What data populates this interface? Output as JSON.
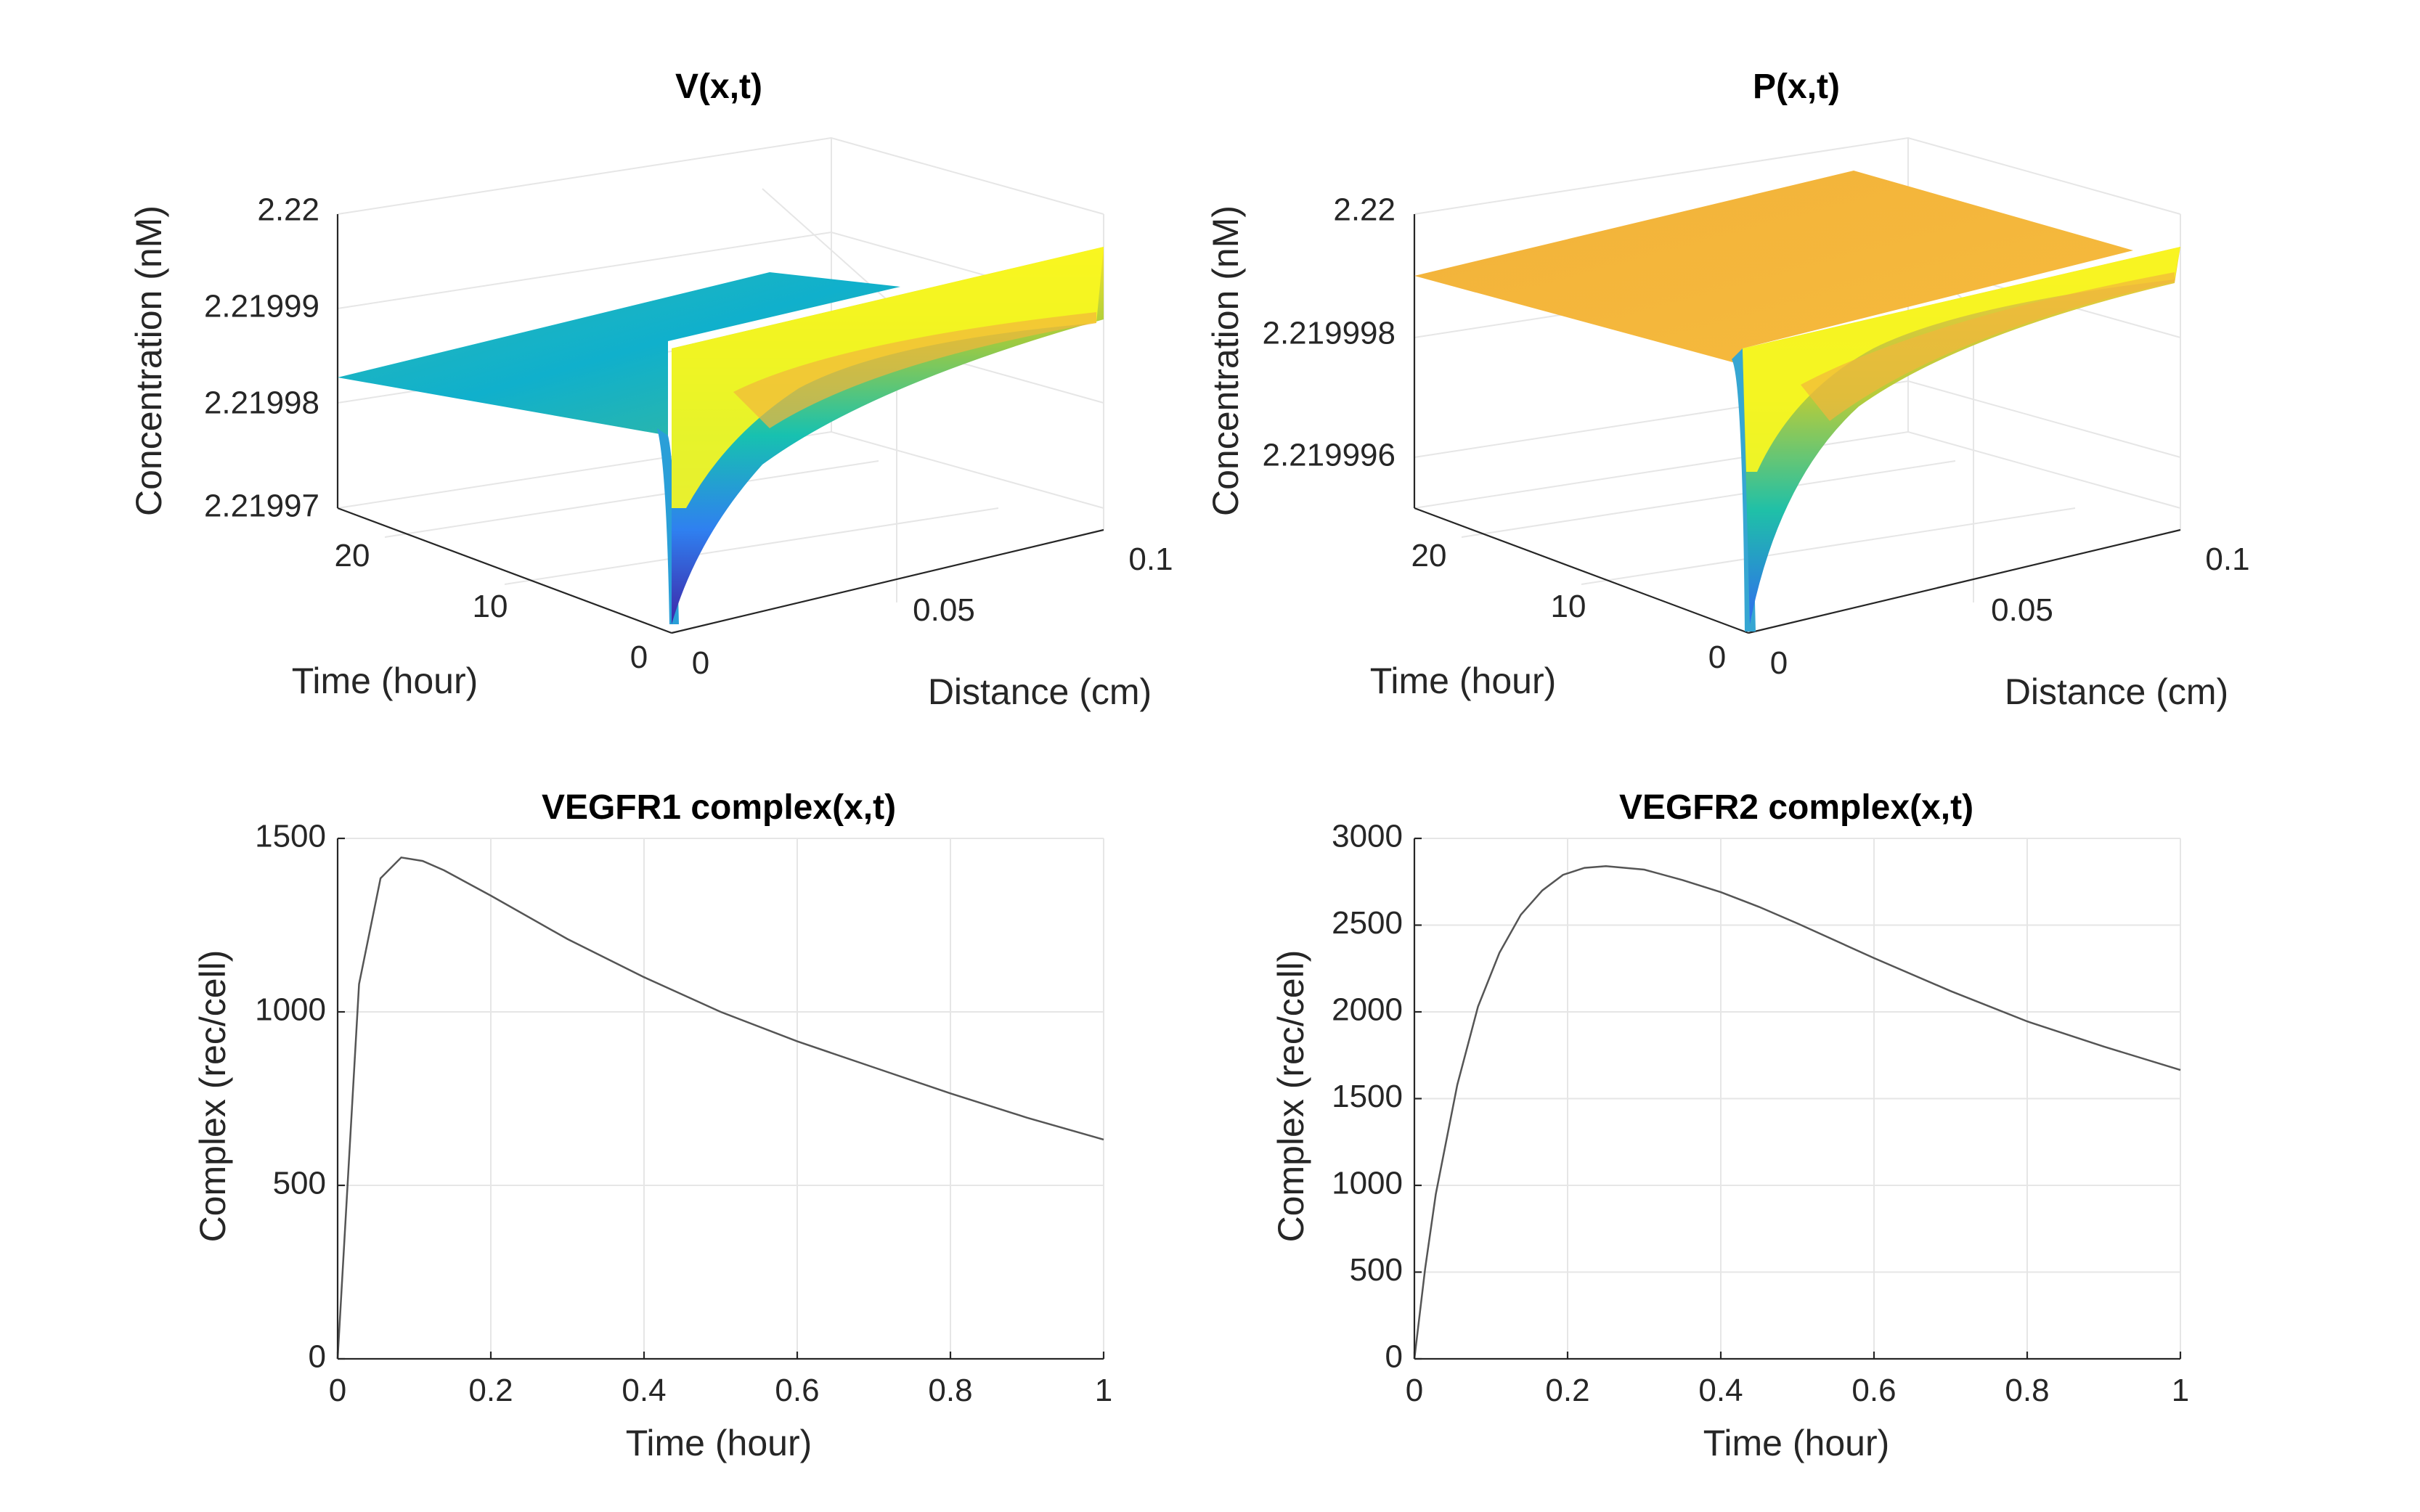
{
  "colors": {
    "surface_v_plateau": "#14b4c6",
    "surface_p_plateau": "#f3b43c",
    "surface_edge": "#f9f91e",
    "surface_low": "#3e26a8",
    "line": "#555555",
    "grid": "#e6e6e6"
  },
  "chart_data": [
    {
      "type": "surface",
      "title": "V(x,t)",
      "xlabel": "Distance (cm)",
      "ylabel": "Time (hour)",
      "zlabel": "Concentration (nM)",
      "x_ticks": [
        "0",
        "0.05",
        "0.1"
      ],
      "y_ticks": [
        "0",
        "10",
        "20"
      ],
      "z_ticks": [
        "2.21997",
        "2.21998",
        "2.21999",
        "2.22"
      ],
      "xlim": [
        0,
        0.1
      ],
      "ylim": [
        0,
        24
      ],
      "zlim": [
        2.21997,
        2.22
      ],
      "plateau_value": 2.219983,
      "edge_value_x0": 2.219967,
      "edge_value_xmax": 2.219992,
      "colormap": "parula",
      "grid": true
    },
    {
      "type": "surface",
      "title": "P(x,t)",
      "xlabel": "Distance (cm)",
      "ylabel": "Time (hour)",
      "zlabel": "Concentration (nM)",
      "x_ticks": [
        "0",
        "0.05",
        "0.1"
      ],
      "y_ticks": [
        "0",
        "10",
        "20"
      ],
      "z_ticks": [
        "2.219996",
        "2.219998",
        "2.22"
      ],
      "xlim": [
        0,
        0.1
      ],
      "ylim": [
        0,
        24
      ],
      "zlim": [
        2.219994,
        2.22
      ],
      "plateau_value": 2.219999,
      "edge_value_x0": 2.219994,
      "edge_value_xmax": 2.2199995,
      "colormap": "parula",
      "grid": true
    },
    {
      "type": "line",
      "title": "VEGFR1 complex(x,t)",
      "xlabel": "Time (hour)",
      "ylabel": "Complex (rec/cell)",
      "xlim": [
        0,
        1
      ],
      "ylim": [
        0,
        1500
      ],
      "x_ticks": [
        "0",
        "0.2",
        "0.4",
        "0.6",
        "0.8",
        "1"
      ],
      "y_ticks": [
        "0",
        "500",
        "1000",
        "1500"
      ],
      "grid": true,
      "x": [
        0,
        0.028,
        0.056,
        0.083,
        0.111,
        0.139,
        0.2,
        0.3,
        0.4,
        0.5,
        0.6,
        0.7,
        0.8,
        0.9,
        1.0
      ],
      "y": [
        0,
        1080,
        1385,
        1445,
        1435,
        1408,
        1335,
        1210,
        1100,
        1000,
        915,
        840,
        765,
        695,
        632
      ]
    },
    {
      "type": "line",
      "title": "VEGFR2 complex(x,t)",
      "xlabel": "Time (hour)",
      "ylabel": "Complex (rec/cell)",
      "xlim": [
        0,
        1
      ],
      "ylim": [
        0,
        3000
      ],
      "x_ticks": [
        "0",
        "0.2",
        "0.4",
        "0.6",
        "0.8",
        "1"
      ],
      "y_ticks": [
        "0",
        "500",
        "1000",
        "1500",
        "2000",
        "2500",
        "3000"
      ],
      "grid": true,
      "x": [
        0,
        0.014,
        0.028,
        0.056,
        0.083,
        0.111,
        0.139,
        0.167,
        0.194,
        0.222,
        0.25,
        0.3,
        0.35,
        0.4,
        0.45,
        0.5,
        0.6,
        0.7,
        0.8,
        0.9,
        1.0
      ],
      "y": [
        0,
        520,
        950,
        1580,
        2030,
        2340,
        2560,
        2700,
        2790,
        2830,
        2840,
        2820,
        2760,
        2690,
        2605,
        2510,
        2310,
        2120,
        1945,
        1800,
        1665
      ]
    }
  ]
}
